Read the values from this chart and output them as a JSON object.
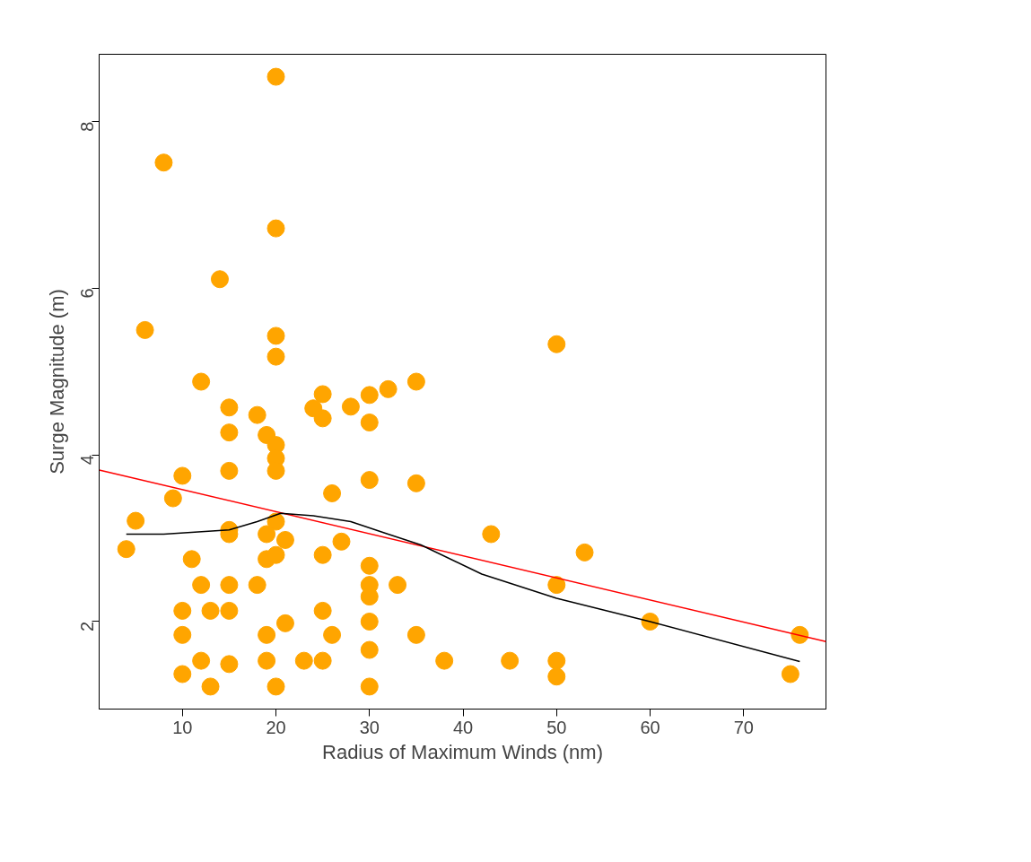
{
  "chart_data": {
    "type": "scatter",
    "xlabel": "Radius of Maximum Winds (nm)",
    "ylabel": "Surge Magnitude (m)",
    "xlim": [
      1.1,
      78.8
    ],
    "ylim": [
      0.95,
      8.81
    ],
    "xticks": [
      10,
      20,
      30,
      40,
      50,
      60,
      70
    ],
    "yticks": [
      2,
      4,
      6,
      8
    ],
    "grid": false,
    "series": [
      {
        "marker": "circle",
        "color": "#ffa500",
        "x": [
          8,
          20,
          20,
          14,
          6,
          20,
          20,
          50,
          12,
          15,
          15,
          18,
          19,
          20,
          20,
          20,
          15,
          24,
          25,
          25,
          28,
          30,
          30,
          32,
          35,
          10,
          9,
          5,
          4,
          26,
          30,
          35,
          15,
          15,
          20,
          19,
          21,
          19,
          20,
          11,
          27,
          25,
          43,
          53,
          30,
          30,
          30,
          33,
          50,
          12,
          15,
          18,
          10,
          13,
          15,
          25,
          21,
          30,
          60,
          10,
          19,
          26,
          35,
          76,
          30,
          12,
          15,
          19,
          23,
          25,
          38,
          45,
          50,
          50,
          10,
          75,
          13,
          20,
          30
        ],
        "values": [
          7.51,
          8.54,
          6.72,
          6.11,
          5.5,
          5.43,
          5.18,
          5.33,
          4.88,
          4.57,
          4.27,
          4.48,
          4.24,
          4.12,
          3.96,
          3.81,
          3.81,
          4.56,
          4.73,
          4.44,
          4.58,
          4.72,
          4.39,
          4.79,
          4.88,
          3.75,
          3.48,
          3.21,
          2.87,
          3.54,
          3.7,
          3.66,
          3.1,
          3.05,
          3.2,
          3.05,
          2.98,
          2.75,
          2.8,
          2.75,
          2.96,
          2.8,
          3.05,
          2.83,
          2.67,
          2.44,
          2.3,
          2.44,
          2.44,
          2.44,
          2.44,
          2.44,
          2.13,
          2.13,
          2.13,
          2.13,
          1.98,
          2.0,
          2.0,
          1.84,
          1.84,
          1.84,
          1.84,
          1.84,
          1.66,
          1.53,
          1.49,
          1.53,
          1.53,
          1.53,
          1.53,
          1.53,
          1.53,
          1.34,
          1.37,
          1.37,
          1.22,
          1.22,
          1.22
        ]
      },
      {
        "type": "line",
        "color": "#ff0000",
        "x": [
          1.1,
          78.8
        ],
        "values": [
          3.82,
          1.76
        ]
      },
      {
        "type": "line",
        "color": "#000000",
        "x": [
          4,
          8,
          15,
          18,
          20.5,
          24,
          28,
          32,
          35.5,
          42,
          50,
          60,
          76
        ],
        "values": [
          3.05,
          3.05,
          3.1,
          3.2,
          3.3,
          3.27,
          3.2,
          3.05,
          2.92,
          2.57,
          2.28,
          2.0,
          1.52
        ]
      }
    ]
  }
}
